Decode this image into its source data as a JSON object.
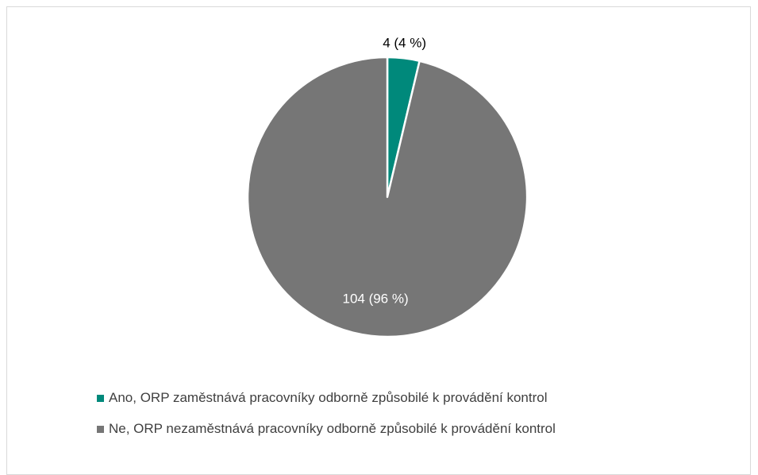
{
  "chart_data": {
    "type": "pie",
    "slices": [
      {
        "name": "Ano, ORP zaměstnává pracovníky odborně způsobilé k provádění kontrol",
        "value": 4,
        "label": "4 (4 %)",
        "color": "#00897B",
        "label_color": "#000000"
      },
      {
        "name": "Ne, ORP nezaměstnává pracovníky odborně způsobilé k provádění kontrol",
        "value": 104,
        "label": "104 (96 %)",
        "color": "#767676",
        "label_color": "#ffffff"
      }
    ],
    "legend_position": "bottom"
  }
}
